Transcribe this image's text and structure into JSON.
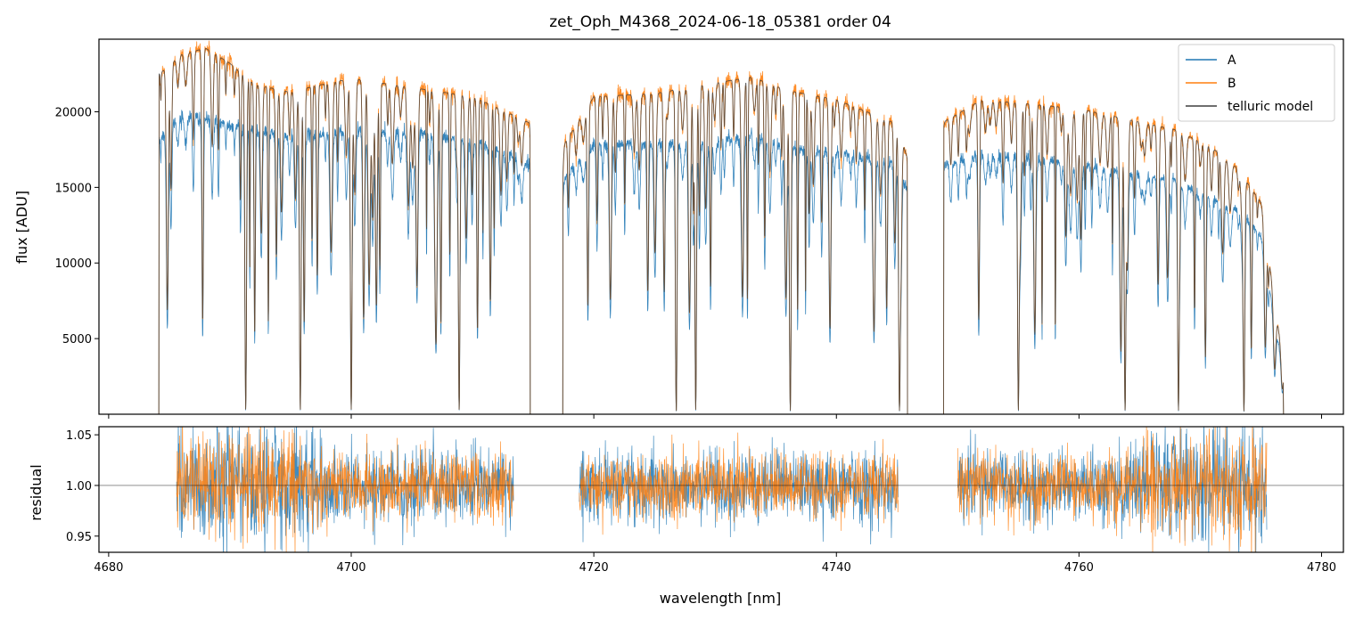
{
  "chart_data": [
    {
      "type": "line",
      "panel": "top",
      "title": "zet_Oph_M4368_2024-06-18_05381  order 04",
      "xlabel": "",
      "ylabel": "flux [ADU]",
      "xlim": [
        4679.2,
        4781.8
      ],
      "ylim": [
        0,
        24800
      ],
      "yticks": [
        5000,
        10000,
        15000,
        20000
      ],
      "ytick_labels": [
        "5000",
        "10000",
        "15000",
        "20000"
      ],
      "x_coverage_segments": [
        [
          4684.1,
          4714.8
        ],
        [
          4717.4,
          4745.9
        ],
        [
          4748.8,
          4776.9
        ]
      ],
      "series": [
        {
          "name": "A",
          "color": "#1f77b4",
          "continuum": [
            [
              4684.2,
              18200
            ],
            [
              4686,
              19800
            ],
            [
              4690,
              19200
            ],
            [
              4695,
              18300
            ],
            [
              4700,
              18800
            ],
            [
              4705,
              18600
            ],
            [
              4710,
              18100
            ],
            [
              4713,
              17200
            ],
            [
              4714.6,
              16500
            ],
            [
              4717.5,
              15600
            ],
            [
              4720,
              17800
            ],
            [
              4725,
              17900
            ],
            [
              4730,
              17900
            ],
            [
              4733,
              18500
            ],
            [
              4736,
              17600
            ],
            [
              4740,
              17300
            ],
            [
              4745,
              16600
            ],
            [
              4746,
              14500
            ],
            [
              4749,
              16400
            ],
            [
              4752,
              17200
            ],
            [
              4760,
              16600
            ],
            [
              4768,
              15400
            ],
            [
              4771,
              14200
            ],
            [
              4773,
              13600
            ],
            [
              4775,
              11800
            ],
            [
              4776.9,
              2500
            ]
          ]
        },
        {
          "name": "B",
          "color": "#ff7f0e",
          "continuum": [
            [
              4684.2,
              22500
            ],
            [
              4686,
              23800
            ],
            [
              4688,
              24200
            ],
            [
              4690,
              23200
            ],
            [
              4692,
              21800
            ],
            [
              4695,
              21300
            ],
            [
              4697,
              21700
            ],
            [
              4700,
              22200
            ],
            [
              4705,
              21600
            ],
            [
              4710,
              21000
            ],
            [
              4713,
              19900
            ],
            [
              4714.6,
              19300
            ],
            [
              4717.5,
              17800
            ],
            [
              4720,
              21000
            ],
            [
              4725,
              21200
            ],
            [
              4730,
              21900
            ],
            [
              4733,
              22300
            ],
            [
              4736,
              21400
            ],
            [
              4740,
              20800
            ],
            [
              4745,
              19200
            ],
            [
              4746,
              16500
            ],
            [
              4749,
              19400
            ],
            [
              4752,
              20800
            ],
            [
              4760,
              20200
            ],
            [
              4768,
              18800
            ],
            [
              4771,
              17600
            ],
            [
              4773,
              16300
            ],
            [
              4775,
              14000
            ],
            [
              4776.9,
              3000
            ]
          ]
        },
        {
          "name": "telluric model",
          "color": "#3f3f3f",
          "continuum": [
            [
              4684.2,
              22500
            ],
            [
              4686,
              23800
            ],
            [
              4688,
              24200
            ],
            [
              4690,
              23200
            ],
            [
              4692,
              21800
            ],
            [
              4695,
              21300
            ],
            [
              4697,
              21700
            ],
            [
              4700,
              22200
            ],
            [
              4705,
              21600
            ],
            [
              4710,
              21000
            ],
            [
              4713,
              19900
            ],
            [
              4714.6,
              19300
            ],
            [
              4717.5,
              17800
            ],
            [
              4720,
              21000
            ],
            [
              4725,
              21200
            ],
            [
              4730,
              21900
            ],
            [
              4733,
              22300
            ],
            [
              4736,
              21400
            ],
            [
              4740,
              20800
            ],
            [
              4745,
              19200
            ],
            [
              4746,
              16500
            ],
            [
              4749,
              19400
            ],
            [
              4752,
              20800
            ],
            [
              4760,
              20200
            ],
            [
              4768,
              18800
            ],
            [
              4771,
              17600
            ],
            [
              4773,
              16300
            ],
            [
              4775,
              14000
            ],
            [
              4776.9,
              3000
            ]
          ]
        }
      ],
      "deep_absorption_lines_nm": [
        4691.3,
        4695.8,
        4700.0,
        4708.9,
        4726.8,
        4728.4,
        4736.2,
        4745.2,
        4755.0,
        4763.8,
        4768.2,
        4773.6
      ],
      "legend": {
        "location": "top-right",
        "entries": [
          "A",
          "B",
          "telluric model"
        ]
      }
    },
    {
      "type": "line",
      "panel": "bottom",
      "xlabel": "wavelength [nm]",
      "ylabel": "residual",
      "xlim": [
        4679.2,
        4781.8
      ],
      "ylim": [
        0.934,
        1.058
      ],
      "xticks": [
        4680,
        4700,
        4720,
        4740,
        4760,
        4780
      ],
      "xtick_labels": [
        "4680",
        "4700",
        "4720",
        "4740",
        "4760",
        "4780"
      ],
      "yticks": [
        0.95,
        1.0,
        1.05
      ],
      "ytick_labels": [
        "0.95",
        "1.00",
        "1.05"
      ],
      "reference_line": 1.0,
      "x_coverage_segments": [
        [
          4685.6,
          4713.4
        ],
        [
          4718.8,
          4745.1
        ],
        [
          4750.0,
          4775.5
        ]
      ],
      "series": [
        {
          "name": "A",
          "color": "#1f77b4",
          "center": 1.0,
          "scatter": 0.018
        },
        {
          "name": "B",
          "color": "#ff7f0e",
          "center": 1.0,
          "scatter": 0.016
        }
      ]
    }
  ]
}
